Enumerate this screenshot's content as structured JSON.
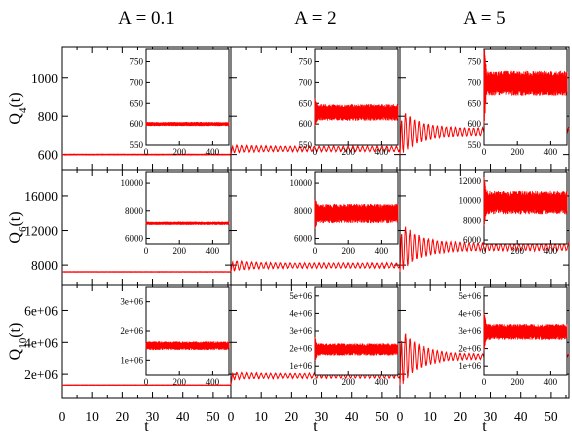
{
  "chart_data": {
    "type": "line",
    "series_color": "#ff0000",
    "column_headers": [
      "A = 0.1",
      "A = 2",
      "A = 5"
    ],
    "row_ylabels": [
      {
        "base": "Q",
        "sub": "4",
        "suffix": "(t)"
      },
      {
        "base": "Q",
        "sub": "6",
        "suffix": "(t)"
      },
      {
        "base": "Q",
        "sub": "10",
        "suffix": "(t)"
      }
    ],
    "xlabel": "t",
    "x_ticks": [
      0,
      10,
      20,
      30,
      40,
      50
    ],
    "x_tick_labels": [
      "0",
      "10",
      "20",
      "30",
      "40",
      "50"
    ],
    "xlim": [
      0,
      56
    ],
    "rows": [
      {
        "ylim": [
          520,
          1160
        ],
        "y_ticks": [
          600,
          800,
          1000
        ],
        "y_tick_labels": [
          "600",
          "800",
          "1000"
        ],
        "inset": {
          "xlim": [
            0,
            500
          ],
          "x_ticks": [
            0,
            200,
            400
          ],
          "x_tick_labels": [
            "0",
            "200",
            "400"
          ],
          "ylim": [
            550,
            780
          ],
          "y_ticks": [
            550,
            600,
            650,
            700,
            750
          ],
          "y_tick_labels": [
            "550",
            "600",
            "650",
            "700",
            "750"
          ]
        }
      },
      {
        "ylim": [
          5700,
          19000
        ],
        "y_ticks": [
          8000,
          12000,
          16000
        ],
        "y_tick_labels": [
          "8000",
          "12000",
          "16000"
        ],
        "inset": {
          "xlim": [
            0,
            500
          ],
          "x_ticks": [
            0,
            200,
            400
          ],
          "x_tick_labels": [
            "0",
            "200",
            "400"
          ],
          "y_ticks": [
            6000,
            8000,
            10000,
            12000
          ],
          "y_tick_labels": [
            "6000",
            "8000",
            "10000",
            "12000"
          ],
          "ylims_by_column": [
            [
              5600,
              10800
            ],
            [
              5600,
              10800
            ],
            [
              5600,
              12900
            ]
          ]
        }
      },
      {
        "ylim": [
          500000,
          7600000
        ],
        "y_ticks": [
          2000000,
          4000000,
          6000000
        ],
        "y_tick_labels": [
          "2e+06",
          "4e+06",
          "6e+06"
        ],
        "inset": {
          "xlim": [
            0,
            500
          ],
          "x_ticks": [
            0,
            200,
            400
          ],
          "x_tick_labels": [
            "0",
            "200",
            "400"
          ],
          "ylims_by_column": [
            [
              500000,
              3500000
            ],
            [
              500000,
              5500000
            ],
            [
              500000,
              5500000
            ]
          ],
          "y_ticks_by_column": [
            [
              1000000,
              2000000,
              3000000
            ],
            [
              1000000,
              2000000,
              3000000,
              4000000,
              5000000
            ],
            [
              1000000,
              2000000,
              3000000,
              4000000,
              5000000
            ]
          ],
          "y_tick_labels_by_column": [
            [
              "1e+06",
              "2e+06",
              "3e+06"
            ],
            [
              "1e+06",
              "2e+06",
              "3e+06",
              "4e+06",
              "5e+06"
            ],
            [
              "1e+06",
              "2e+06",
              "3e+06",
              "4e+06",
              "5e+06"
            ]
          ]
        }
      }
    ],
    "panels": [
      {
        "row": 0,
        "col": 0,
        "main": {
          "initial": 600,
          "mean": 600,
          "osc_amplitude": 2,
          "decay_to": 2,
          "period": 0.28
        },
        "inset": {
          "mean": 600,
          "band": 5,
          "initial_spike": 0
        }
      },
      {
        "row": 0,
        "col": 1,
        "main": {
          "initial": 600,
          "mean": 630,
          "osc_amplitude": 22,
          "decay_to": 14,
          "period": 1.6
        },
        "inset": {
          "mean": 628,
          "band": 20,
          "initial_spike": 15
        }
      },
      {
        "row": 0,
        "col": 2,
        "main": {
          "initial": 600,
          "mean": 718,
          "osc_amplitude": 130,
          "decay_to": 20,
          "period": 1.5
        },
        "inset": {
          "mean": 698,
          "band": 30,
          "initial_spike": 80
        }
      },
      {
        "row": 1,
        "col": 0,
        "main": {
          "initial": 7200,
          "mean": 7200,
          "osc_amplitude": 30,
          "decay_to": 30,
          "period": 0.28
        },
        "inset": {
          "mean": 7100,
          "band": 120,
          "initial_spike": 0
        }
      },
      {
        "row": 1,
        "col": 1,
        "main": {
          "initial": 7200,
          "mean": 7950,
          "osc_amplitude": 700,
          "decay_to": 300,
          "period": 1.6
        },
        "inset": {
          "mean": 7800,
          "band": 700,
          "initial_spike": 500
        }
      },
      {
        "row": 1,
        "col": 2,
        "main": {
          "initial": 7200,
          "mean": 10100,
          "osc_amplitude": 3200,
          "decay_to": 450,
          "period": 1.5
        },
        "inset": {
          "mean": 9800,
          "band": 1200,
          "initial_spike": 1500
        }
      },
      {
        "row": 2,
        "col": 0,
        "main": {
          "initial": 1300000,
          "mean": 1300000,
          "osc_amplitude": 15000,
          "decay_to": 15000,
          "period": 0.28
        },
        "inset": {
          "mean": 1500000,
          "band": 150000,
          "initial_spike": 0
        }
      },
      {
        "row": 2,
        "col": 1,
        "main": {
          "initial": 1300000,
          "mean": 1900000,
          "osc_amplitude": 250000,
          "decay_to": 150000,
          "period": 1.6
        },
        "inset": {
          "mean": 1950000,
          "band": 350000,
          "initial_spike": 400000
        }
      },
      {
        "row": 2,
        "col": 2,
        "main": {
          "initial": 1300000,
          "mean": 3100000,
          "osc_amplitude": 2100000,
          "decay_to": 150000,
          "period": 1.5
        },
        "inset": {
          "mean": 2950000,
          "band": 450000,
          "initial_spike": 800000
        }
      }
    ]
  }
}
